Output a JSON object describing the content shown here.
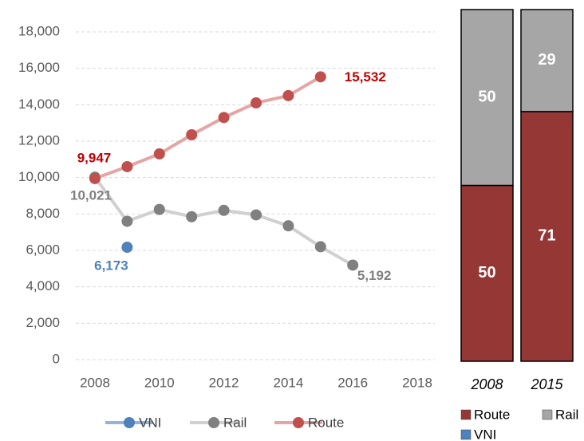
{
  "chart_data": [
    {
      "type": "line",
      "x": [
        2008,
        2009,
        2010,
        2011,
        2012,
        2013,
        2014,
        2015,
        2016
      ],
      "xlim": [
        2008,
        2018
      ],
      "xticks": [
        2008,
        2010,
        2012,
        2014,
        2016,
        2018
      ],
      "ylim": [
        0,
        18000
      ],
      "yticks": [
        0,
        {
          "value": 2000,
          "label": "2,000"
        },
        {
          "value": 4000,
          "label": "4,000"
        },
        {
          "value": 6000,
          "label": "6,000"
        },
        {
          "value": 8000,
          "label": "8,000"
        },
        {
          "value": 10000,
          "label": "10,000"
        },
        {
          "value": 12000,
          "label": "12,000"
        },
        {
          "value": 14000,
          "label": "14,000"
        },
        {
          "value": 16000,
          "label": "16,000"
        },
        {
          "value": 18000,
          "label": "18,000"
        }
      ],
      "grid": true,
      "legend": "bottom",
      "series": [
        {
          "name": "VNI",
          "color": "#4f81bd",
          "line_color": "#95b3d7",
          "label_color": "#4f81bd",
          "values": [
            null,
            6173,
            null,
            null,
            null,
            null,
            null,
            null,
            null
          ],
          "value_labels": [
            null,
            "6,173",
            null,
            null,
            null,
            null,
            null,
            null,
            null
          ]
        },
        {
          "name": "Rail",
          "color": "#808080",
          "line_color": "#d0d0d0",
          "label_color": "#808080",
          "values": [
            10021,
            7600,
            8250,
            7850,
            8200,
            7950,
            7350,
            6200,
            5192
          ],
          "value_labels": [
            "10,021",
            null,
            null,
            null,
            null,
            null,
            null,
            null,
            "5,192"
          ]
        },
        {
          "name": "Route",
          "color": "#c0504d",
          "line_color": "#e6a5a5",
          "label_color": "#c00000",
          "values": [
            9947,
            10600,
            11300,
            12350,
            13300,
            14100,
            14500,
            15532,
            null
          ],
          "value_labels": [
            "9,947",
            null,
            null,
            null,
            null,
            null,
            null,
            "15,532",
            null
          ]
        }
      ]
    },
    {
      "type": "stacked_bar",
      "categories": [
        "2008",
        "2015"
      ],
      "ylim": [
        0,
        100
      ],
      "legend": "bottom",
      "series": [
        {
          "name": "Route",
          "color": "#953735",
          "values": [
            50,
            71
          ]
        },
        {
          "name": "Rail",
          "color": "#a6a6a6",
          "values": [
            50,
            29
          ]
        },
        {
          "name": "VNI",
          "color": "#4f81bd",
          "values": [
            null,
            null
          ]
        }
      ]
    }
  ]
}
